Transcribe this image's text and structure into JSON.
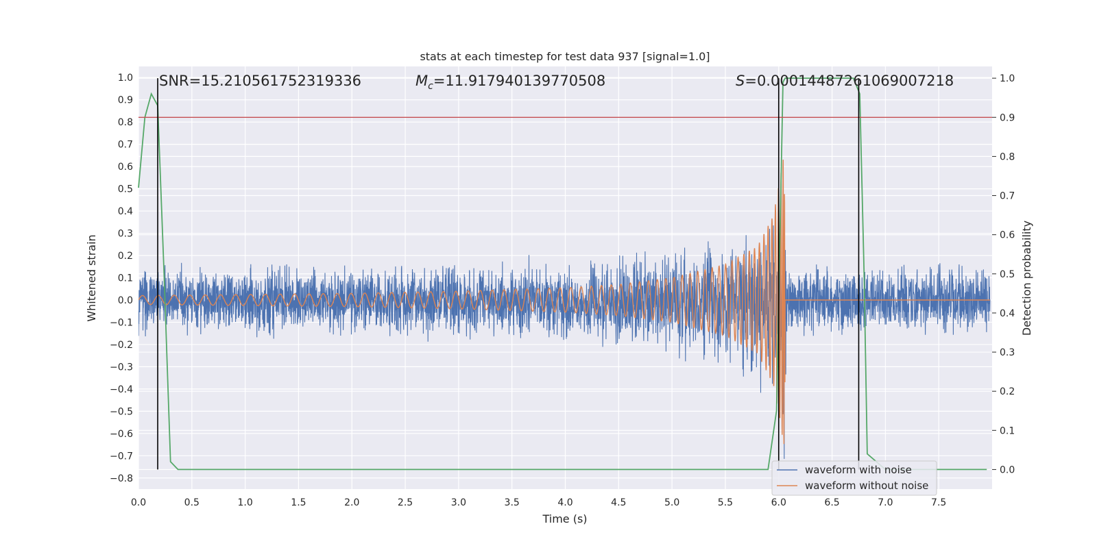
{
  "chart_data": {
    "type": "line",
    "title": "stats at each timestep for test data 937 [signal=1.0]",
    "xlabel": "Time (s)",
    "ylabel_left": "Whitened strain",
    "ylabel_right": "Detection probability",
    "xlim": [
      0.0,
      8.0
    ],
    "ylim_left": [
      -0.85,
      1.05
    ],
    "ylim_right": [
      -0.05,
      1.03
    ],
    "x_ticks": [
      0.0,
      0.5,
      1.0,
      1.5,
      2.0,
      2.5,
      3.0,
      3.5,
      4.0,
      4.5,
      5.0,
      5.5,
      6.0,
      6.5,
      7.0,
      7.5
    ],
    "x_tick_labels": [
      "0.0",
      "0.5",
      "1.0",
      "1.5",
      "2.0",
      "2.5",
      "3.0",
      "3.5",
      "4.0",
      "4.5",
      "5.0",
      "5.5",
      "6.0",
      "6.5",
      "7.0",
      "7.5"
    ],
    "y_ticks_left": [
      1.0,
      0.9,
      0.8,
      0.7,
      0.6,
      0.5,
      0.4,
      0.3,
      0.2,
      0.1,
      0.0,
      -0.1,
      -0.2,
      -0.3,
      -0.4,
      -0.5,
      -0.6,
      -0.7,
      -0.8
    ],
    "y_tick_labels_left": [
      "1.0",
      "0.9",
      "0.8",
      "0.7",
      "0.6",
      "0.5",
      "0.4",
      "0.3",
      "0.2",
      "0.1",
      "0.0",
      "−0.1",
      "−0.2",
      "−0.3",
      "−0.4",
      "−0.5",
      "−0.6",
      "−0.7",
      "−0.8"
    ],
    "y_ticks_right": [
      1.0,
      0.9,
      0.8,
      0.7,
      0.6,
      0.5,
      0.4,
      0.3,
      0.2,
      0.1,
      0.0
    ],
    "y_tick_labels_right": [
      "1.0",
      "0.9",
      "0.8",
      "0.7",
      "0.6",
      "0.5",
      "0.4",
      "0.3",
      "0.2",
      "0.1",
      "0.0"
    ],
    "grid": true,
    "annotations": {
      "snr": "SNR=15.210561752319336",
      "mc_symbol": "M",
      "mc_sub": "c",
      "mc_value": "=11.917940139770508",
      "s_symbol": "S",
      "s_value": "=0.00014487261069007218"
    },
    "legend": {
      "position": "lower-right",
      "entries": [
        "waveform with noise",
        "waveform without noise"
      ]
    },
    "series": [
      {
        "name": "waveform with noise",
        "color": "#4c72b0",
        "axis": "left",
        "envelope": {
          "t": [
            0.0,
            1.0,
            2.0,
            3.0,
            4.0,
            4.5,
            5.0,
            5.5,
            5.8,
            5.95,
            6.02,
            6.06,
            6.08,
            7.0,
            7.98
          ],
          "upper": [
            0.17,
            0.17,
            0.17,
            0.17,
            0.19,
            0.21,
            0.24,
            0.3,
            0.36,
            0.45,
            0.48,
            0.46,
            0.17,
            0.17,
            0.17
          ],
          "lower": [
            -0.17,
            -0.17,
            -0.17,
            -0.18,
            -0.2,
            -0.22,
            -0.26,
            -0.32,
            -0.4,
            -0.5,
            -0.7,
            -0.78,
            -0.17,
            -0.17,
            -0.17
          ]
        }
      },
      {
        "name": "waveform without noise",
        "color": "#dd8452",
        "axis": "left",
        "envelope": {
          "t": [
            0.0,
            1.0,
            2.0,
            3.0,
            4.0,
            4.5,
            5.0,
            5.5,
            5.8,
            5.95,
            6.02,
            6.05,
            6.07,
            7.98
          ],
          "upper": [
            0.02,
            0.025,
            0.03,
            0.04,
            0.055,
            0.07,
            0.1,
            0.16,
            0.24,
            0.38,
            0.58,
            0.65,
            0.0,
            0.0
          ],
          "lower": [
            -0.02,
            -0.025,
            -0.03,
            -0.04,
            -0.055,
            -0.07,
            -0.1,
            -0.16,
            -0.24,
            -0.38,
            -0.55,
            -0.7,
            0.0,
            0.0
          ]
        }
      },
      {
        "name": "detection probability",
        "color": "#55a868",
        "axis": "right",
        "x": [
          0.0,
          0.06,
          0.12,
          0.18,
          0.24,
          0.3,
          0.37,
          0.5,
          1.0,
          2.0,
          3.0,
          4.0,
          5.0,
          5.9,
          5.98,
          6.04,
          6.06,
          6.1,
          6.5,
          6.7,
          6.76,
          6.8,
          6.83,
          7.0,
          7.5,
          7.95
        ],
        "y": [
          0.72,
          0.9,
          0.96,
          0.93,
          0.5,
          0.02,
          0.0,
          0.0,
          0.0,
          0.0,
          0.0,
          0.0,
          0.0,
          0.0,
          0.15,
          0.99,
          1.0,
          1.0,
          1.0,
          1.0,
          0.96,
          0.5,
          0.04,
          0.0,
          0.0,
          0.0
        ]
      }
    ],
    "threshold_right": 0.9,
    "threshold_color": "#c44e52",
    "vertical_lines_x": [
      0.18,
      6.0,
      6.75
    ]
  }
}
